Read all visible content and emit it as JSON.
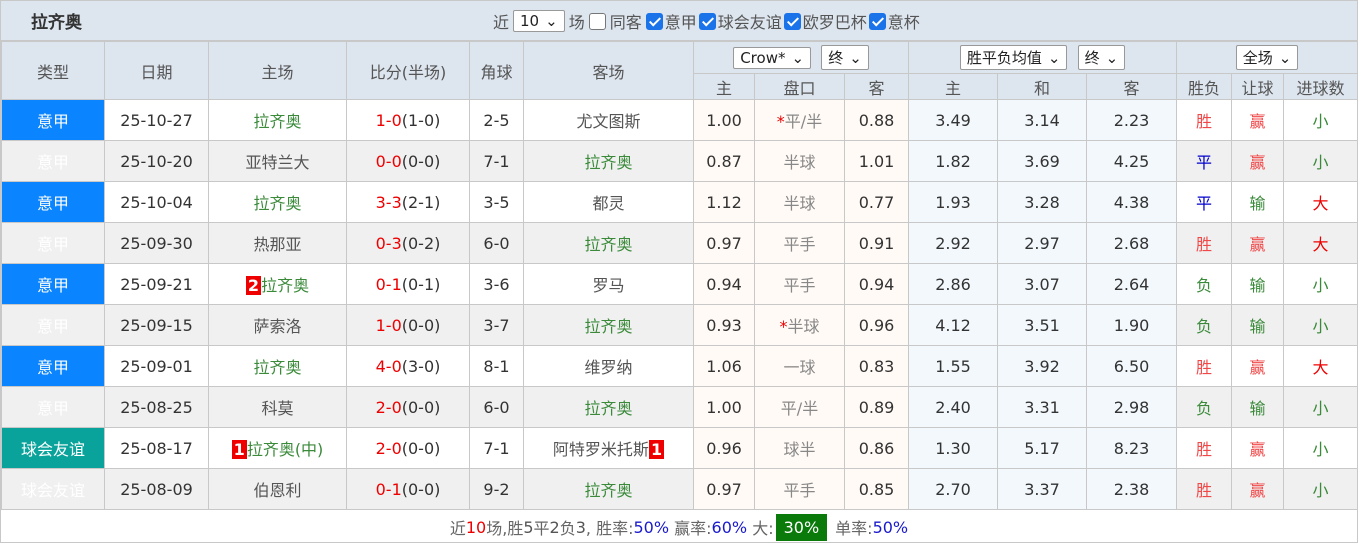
{
  "title": "拉齐奥",
  "filters": {
    "prefix": "近",
    "count": "10",
    "suffix": "场",
    "same_away": "同客",
    "leagues": [
      {
        "label": "意甲",
        "checked": true
      },
      {
        "label": "球会友谊",
        "checked": true
      },
      {
        "label": "欧罗巴杯",
        "checked": true
      },
      {
        "label": "意杯",
        "checked": true
      }
    ]
  },
  "headers": {
    "type": "类型",
    "date": "日期",
    "home": "主场",
    "score": "比分(半场)",
    "corner": "角球",
    "away": "客场",
    "ah_company": "Crow*",
    "ah_time": "终",
    "eu_company": "胜平负均值",
    "eu_time": "终",
    "period": "全场",
    "ah_home": "主",
    "ah_line": "盘口",
    "ah_away": "客",
    "eu_home": "主",
    "eu_draw": "和",
    "eu_away": "客",
    "result": "胜负",
    "handicap": "让球",
    "goals": "进球数"
  },
  "colors": {
    "serie_a": "#0a84ff",
    "friendly": "#0aa39b",
    "team": "#3a8a3a",
    "score": "#e00000",
    "big_badge": "#0a7a0a"
  },
  "rows": [
    {
      "type": "意甲",
      "kind": "serie",
      "date": "25-10-27",
      "home": "拉齐奥",
      "home_hl": true,
      "home_rc": "",
      "score": "1-0",
      "half": "(1-0)",
      "corner": "2-5",
      "away": "尤文图斯",
      "away_hl": false,
      "away_rc": "",
      "ah_h": "1.00",
      "ah_star": "*",
      "ah_l": "平/半",
      "ah_a": "0.88",
      "eu_h": "3.49",
      "eu_d": "3.14",
      "eu_a": "2.23",
      "res": "胜",
      "hc": "赢",
      "goals": "小"
    },
    {
      "type": "意甲",
      "kind": "serie",
      "date": "25-10-20",
      "home": "亚特兰大",
      "home_hl": false,
      "home_rc": "",
      "score": "0-0",
      "half": "(0-0)",
      "corner": "7-1",
      "away": "拉齐奥",
      "away_hl": true,
      "away_rc": "",
      "ah_h": "0.87",
      "ah_star": "",
      "ah_l": "半球",
      "ah_a": "1.01",
      "eu_h": "1.82",
      "eu_d": "3.69",
      "eu_a": "4.25",
      "res": "平",
      "hc": "赢",
      "goals": "小"
    },
    {
      "type": "意甲",
      "kind": "serie",
      "date": "25-10-04",
      "home": "拉齐奥",
      "home_hl": true,
      "home_rc": "",
      "score": "3-3",
      "half": "(2-1)",
      "corner": "3-5",
      "away": "都灵",
      "away_hl": false,
      "away_rc": "",
      "ah_h": "1.12",
      "ah_star": "",
      "ah_l": "半球",
      "ah_a": "0.77",
      "eu_h": "1.93",
      "eu_d": "3.28",
      "eu_a": "4.38",
      "res": "平",
      "hc": "输",
      "goals": "大"
    },
    {
      "type": "意甲",
      "kind": "serie",
      "date": "25-09-30",
      "home": "热那亚",
      "home_hl": false,
      "home_rc": "",
      "score": "0-3",
      "half": "(0-2)",
      "corner": "6-0",
      "away": "拉齐奥",
      "away_hl": true,
      "away_rc": "",
      "ah_h": "0.97",
      "ah_star": "",
      "ah_l": "平手",
      "ah_a": "0.91",
      "eu_h": "2.92",
      "eu_d": "2.97",
      "eu_a": "2.68",
      "res": "胜",
      "hc": "赢",
      "goals": "大"
    },
    {
      "type": "意甲",
      "kind": "serie",
      "date": "25-09-21",
      "home": "拉齐奥",
      "home_hl": true,
      "home_rc": "2",
      "score": "0-1",
      "half": "(0-1)",
      "corner": "3-6",
      "away": "罗马",
      "away_hl": false,
      "away_rc": "",
      "ah_h": "0.94",
      "ah_star": "",
      "ah_l": "平手",
      "ah_a": "0.94",
      "eu_h": "2.86",
      "eu_d": "3.07",
      "eu_a": "2.64",
      "res": "负",
      "hc": "输",
      "goals": "小"
    },
    {
      "type": "意甲",
      "kind": "serie",
      "date": "25-09-15",
      "home": "萨索洛",
      "home_hl": false,
      "home_rc": "",
      "score": "1-0",
      "half": "(0-0)",
      "corner": "3-7",
      "away": "拉齐奥",
      "away_hl": true,
      "away_rc": "",
      "ah_h": "0.93",
      "ah_star": "*",
      "ah_l": "半球",
      "ah_a": "0.96",
      "eu_h": "4.12",
      "eu_d": "3.51",
      "eu_a": "1.90",
      "res": "负",
      "hc": "输",
      "goals": "小"
    },
    {
      "type": "意甲",
      "kind": "serie",
      "date": "25-09-01",
      "home": "拉齐奥",
      "home_hl": true,
      "home_rc": "",
      "score": "4-0",
      "half": "(3-0)",
      "corner": "8-1",
      "away": "维罗纳",
      "away_hl": false,
      "away_rc": "",
      "ah_h": "1.06",
      "ah_star": "",
      "ah_l": "一球",
      "ah_a": "0.83",
      "eu_h": "1.55",
      "eu_d": "3.92",
      "eu_a": "6.50",
      "res": "胜",
      "hc": "赢",
      "goals": "大"
    },
    {
      "type": "意甲",
      "kind": "serie",
      "date": "25-08-25",
      "home": "科莫",
      "home_hl": false,
      "home_rc": "",
      "score": "2-0",
      "half": "(0-0)",
      "corner": "6-0",
      "away": "拉齐奥",
      "away_hl": true,
      "away_rc": "",
      "ah_h": "1.00",
      "ah_star": "",
      "ah_l": "平/半",
      "ah_a": "0.89",
      "eu_h": "2.40",
      "eu_d": "3.31",
      "eu_a": "2.98",
      "res": "负",
      "hc": "输",
      "goals": "小"
    },
    {
      "type": "球会友谊",
      "kind": "friendly",
      "date": "25-08-17",
      "home": "拉齐奥(中)",
      "home_hl": true,
      "home_rc": "1",
      "score": "2-0",
      "half": "(0-0)",
      "corner": "7-1",
      "away": "阿特罗米托斯",
      "away_hl": false,
      "away_rc": "1",
      "ah_h": "0.96",
      "ah_star": "",
      "ah_l": "球半",
      "ah_a": "0.86",
      "eu_h": "1.30",
      "eu_d": "5.17",
      "eu_a": "8.23",
      "res": "胜",
      "hc": "赢",
      "goals": "小"
    },
    {
      "type": "球会友谊",
      "kind": "friendly",
      "date": "25-08-09",
      "home": "伯恩利",
      "home_hl": false,
      "home_rc": "",
      "score": "0-1",
      "half": "(0-0)",
      "corner": "9-2",
      "away": "拉齐奥",
      "away_hl": true,
      "away_rc": "",
      "ah_h": "0.97",
      "ah_star": "",
      "ah_l": "平手",
      "ah_a": "0.85",
      "eu_h": "2.70",
      "eu_d": "3.37",
      "eu_a": "2.38",
      "res": "胜",
      "hc": "赢",
      "goals": "小"
    }
  ],
  "summary": {
    "p1": "近",
    "n": "10",
    "p2": "场,胜",
    "w": "5",
    "p3": "平",
    "d": "2",
    "p4": "负",
    "l": "3",
    "p5": ", 胜率:",
    "win_rate": "50%",
    "p6": " 赢率:",
    "hc_rate": "60%",
    "p7": " 大:",
    "big_rate": "30%",
    "p8": "单率:",
    "odd_rate": "50%"
  }
}
